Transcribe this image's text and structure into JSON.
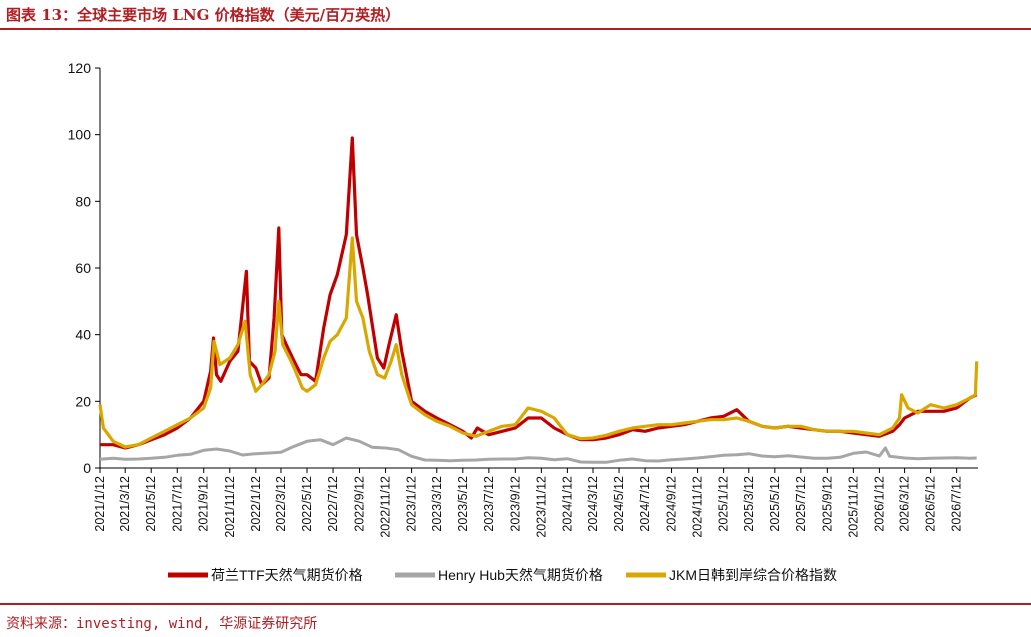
{
  "header": {
    "title": "图表 13：全球主要市场 LNG 价格指数（美元/百万英热）"
  },
  "footer": {
    "source": "资料来源：investing, wind, 华源证券研究所"
  },
  "colors": {
    "ttf": "#c00000",
    "henry_hub": "#a6a6a6",
    "jkm": "#d9a800",
    "accent": "#b01e23"
  },
  "chart_data": {
    "type": "line",
    "title": "图表 13：全球主要市场 LNG 价格指数（美元/百万英热）",
    "ylim": [
      0,
      120
    ],
    "yticks": [
      0,
      20,
      40,
      60,
      80,
      100,
      120
    ],
    "x_tick_labels": [
      "2021/1/12",
      "2021/3/12",
      "2021/5/12",
      "2021/7/12",
      "2021/9/12",
      "2021/11/12",
      "2022/1/12",
      "2022/3/12",
      "2022/5/12",
      "2022/7/12",
      "2022/9/12",
      "2022/11/12",
      "2023/1/12",
      "2023/3/12",
      "2023/5/12",
      "2023/7/12",
      "2023/9/12",
      "2023/11/12",
      "2024/1/12",
      "2024/3/12",
      "2024/5/12",
      "2024/7/12",
      "2024/9/12",
      "2024/11/12",
      "2025/1/12",
      "2025/3/12",
      "2025/5/12",
      "2025/7/12",
      "2025/9/12",
      "2025/11/12",
      "2026/1/12",
      "2026/3/12",
      "2026/5/12",
      "2026/7/12"
    ],
    "grid": false,
    "legend_position": "bottom",
    "series": [
      {
        "name": "荷兰TTF天然气期货价格",
        "points": [
          [
            "2021/1/12",
            7
          ],
          [
            "2021/2/12",
            7
          ],
          [
            "2021/3/12",
            6
          ],
          [
            "2021/4/12",
            7
          ],
          [
            "2021/5/12",
            8.5
          ],
          [
            "2021/6/12",
            10
          ],
          [
            "2021/7/12",
            12
          ],
          [
            "2021/8/12",
            15
          ],
          [
            "2021/9/12",
            20
          ],
          [
            "2021/9/28",
            29
          ],
          [
            "2021/10/5",
            39
          ],
          [
            "2021/10/12",
            28
          ],
          [
            "2021/10/22",
            26
          ],
          [
            "2021/11/12",
            32
          ],
          [
            "2021/12/1",
            35
          ],
          [
            "2021/12/21",
            59
          ],
          [
            "2021/12/28",
            32
          ],
          [
            "2022/1/12",
            30
          ],
          [
            "2022/1/26",
            25
          ],
          [
            "2022/2/12",
            27
          ],
          [
            "2022/2/24",
            45
          ],
          [
            "2022/3/7",
            72
          ],
          [
            "2022/3/14",
            40
          ],
          [
            "2022/3/28",
            36
          ],
          [
            "2022/4/12",
            32
          ],
          [
            "2022/4/28",
            28
          ],
          [
            "2022/5/12",
            28
          ],
          [
            "2022/6/1",
            26
          ],
          [
            "2022/6/20",
            42
          ],
          [
            "2022/7/5",
            52
          ],
          [
            "2022/7/22",
            58
          ],
          [
            "2022/8/12",
            70
          ],
          [
            "2022/8/26",
            99
          ],
          [
            "2022/9/5",
            70
          ],
          [
            "2022/9/20",
            60
          ],
          [
            "2022/10/1",
            52
          ],
          [
            "2022/10/24",
            33
          ],
          [
            "2022/11/8",
            30
          ],
          [
            "2022/11/20",
            37
          ],
          [
            "2022/12/7",
            46
          ],
          [
            "2022/12/20",
            35
          ],
          [
            "2023/1/12",
            20
          ],
          [
            "2023/2/12",
            17
          ],
          [
            "2023/3/12",
            15
          ],
          [
            "2023/4/12",
            13
          ],
          [
            "2023/5/12",
            11
          ],
          [
            "2023/6/1",
            9
          ],
          [
            "2023/6/15",
            12
          ],
          [
            "2023/7/12",
            10
          ],
          [
            "2023/8/12",
            11
          ],
          [
            "2023/9/12",
            12
          ],
          [
            "2023/10/12",
            15
          ],
          [
            "2023/11/12",
            15
          ],
          [
            "2023/12/12",
            12
          ],
          [
            "2024/1/12",
            10
          ],
          [
            "2024/2/12",
            8.5
          ],
          [
            "2024/3/12",
            8.5
          ],
          [
            "2024/4/12",
            9
          ],
          [
            "2024/5/12",
            10
          ],
          [
            "2024/6/12",
            11.5
          ],
          [
            "2024/7/12",
            11
          ],
          [
            "2024/8/12",
            12
          ],
          [
            "2024/9/12",
            12.5
          ],
          [
            "2024/10/12",
            13
          ],
          [
            "2024/11/12",
            14
          ],
          [
            "2024/12/12",
            15
          ],
          [
            "2025/1/12",
            15.5
          ],
          [
            "2025/2/12",
            17.5
          ],
          [
            "2025/3/12",
            14
          ],
          [
            "2025/4/12",
            12.5
          ],
          [
            "2025/5/12",
            12
          ],
          [
            "2025/6/12",
            12.5
          ],
          [
            "2025/7/12",
            12
          ],
          [
            "2025/8/12",
            11.5
          ],
          [
            "2025/9/12",
            11
          ],
          [
            "2025/10/12",
            11
          ],
          [
            "2025/11/12",
            10.5
          ],
          [
            "2025/12/12",
            10
          ],
          [
            "2026/1/12",
            9.5
          ],
          [
            "2026/2/12",
            11
          ],
          [
            "2026/2/28",
            13
          ],
          [
            "2026/3/12",
            15
          ],
          [
            "2026/4/12",
            17
          ],
          [
            "2026/5/12",
            17
          ],
          [
            "2026/6/12",
            17
          ],
          [
            "2026/7/12",
            18
          ],
          [
            "2026/8/12",
            21
          ],
          [
            "2026/8/28",
            22
          ]
        ]
      },
      {
        "name": "Henry Hub天然气期货价格",
        "points": [
          [
            "2021/1/12",
            2.6
          ],
          [
            "2021/2/12",
            2.9
          ],
          [
            "2021/3/12",
            2.6
          ],
          [
            "2021/4/12",
            2.7
          ],
          [
            "2021/5/12",
            2.9
          ],
          [
            "2021/6/12",
            3.2
          ],
          [
            "2021/7/12",
            3.8
          ],
          [
            "2021/8/12",
            4.1
          ],
          [
            "2021/9/12",
            5.3
          ],
          [
            "2021/10/12",
            5.7
          ],
          [
            "2021/11/12",
            5.1
          ],
          [
            "2021/12/12",
            3.9
          ],
          [
            "2022/1/12",
            4.3
          ],
          [
            "2022/2/12",
            4.5
          ],
          [
            "2022/3/12",
            4.7
          ],
          [
            "2022/4/12",
            6.5
          ],
          [
            "2022/5/12",
            8.0
          ],
          [
            "2022/6/12",
            8.5
          ],
          [
            "2022/7/12",
            7.0
          ],
          [
            "2022/8/12",
            9.0
          ],
          [
            "2022/9/12",
            8.0
          ],
          [
            "2022/10/12",
            6.2
          ],
          [
            "2022/11/12",
            6.0
          ],
          [
            "2022/12/12",
            5.5
          ],
          [
            "2023/1/12",
            3.5
          ],
          [
            "2023/2/12",
            2.4
          ],
          [
            "2023/3/12",
            2.3
          ],
          [
            "2023/4/12",
            2.2
          ],
          [
            "2023/5/12",
            2.3
          ],
          [
            "2023/6/12",
            2.4
          ],
          [
            "2023/7/12",
            2.6
          ],
          [
            "2023/8/12",
            2.7
          ],
          [
            "2023/9/12",
            2.7
          ],
          [
            "2023/10/12",
            3.1
          ],
          [
            "2023/11/12",
            2.9
          ],
          [
            "2023/12/12",
            2.5
          ],
          [
            "2024/1/12",
            2.8
          ],
          [
            "2024/2/12",
            1.8
          ],
          [
            "2024/3/12",
            1.7
          ],
          [
            "2024/4/12",
            1.7
          ],
          [
            "2024/5/12",
            2.3
          ],
          [
            "2024/6/12",
            2.7
          ],
          [
            "2024/7/12",
            2.2
          ],
          [
            "2024/8/12",
            2.1
          ],
          [
            "2024/9/12",
            2.5
          ],
          [
            "2024/10/12",
            2.7
          ],
          [
            "2024/11/12",
            3.0
          ],
          [
            "2024/12/12",
            3.4
          ],
          [
            "2025/1/12",
            3.8
          ],
          [
            "2025/2/12",
            4.0
          ],
          [
            "2025/3/12",
            4.3
          ],
          [
            "2025/4/12",
            3.6
          ],
          [
            "2025/5/12",
            3.4
          ],
          [
            "2025/6/12",
            3.7
          ],
          [
            "2025/7/12",
            3.3
          ],
          [
            "2025/8/12",
            2.9
          ],
          [
            "2025/9/12",
            2.9
          ],
          [
            "2025/10/12",
            3.2
          ],
          [
            "2025/11/12",
            4.4
          ],
          [
            "2025/12/12",
            4.8
          ],
          [
            "2026/1/12",
            3.6
          ],
          [
            "2026/1/26",
            6.0
          ],
          [
            "2026/2/5",
            3.5
          ],
          [
            "2026/3/12",
            3.0
          ],
          [
            "2026/4/12",
            2.8
          ],
          [
            "2026/5/12",
            2.9
          ],
          [
            "2026/6/12",
            3.0
          ],
          [
            "2026/7/12",
            3.1
          ],
          [
            "2026/8/12",
            2.9
          ],
          [
            "2026/8/28",
            3.0
          ]
        ]
      },
      {
        "name": "JKM日韩到岸综合价格指数",
        "points": [
          [
            "2021/1/12",
            19
          ],
          [
            "2021/1/20",
            12
          ],
          [
            "2021/2/12",
            8
          ],
          [
            "2021/3/12",
            6.3
          ],
          [
            "2021/4/12",
            7
          ],
          [
            "2021/5/12",
            9
          ],
          [
            "2021/6/12",
            11
          ],
          [
            "2021/7/12",
            13
          ],
          [
            "2021/8/12",
            15
          ],
          [
            "2021/9/12",
            18
          ],
          [
            "2021/9/28",
            24
          ],
          [
            "2021/10/6",
            38
          ],
          [
            "2021/10/20",
            31
          ],
          [
            "2021/11/12",
            33
          ],
          [
            "2021/12/1",
            37
          ],
          [
            "2021/12/18",
            44
          ],
          [
            "2021/12/30",
            28
          ],
          [
            "2022/1/12",
            23
          ],
          [
            "2022/1/26",
            25
          ],
          [
            "2022/2/12",
            28
          ],
          [
            "2022/2/26",
            35
          ],
          [
            "2022/3/7",
            50
          ],
          [
            "2022/3/16",
            37
          ],
          [
            "2022/4/1",
            33
          ],
          [
            "2022/4/12",
            30
          ],
          [
            "2022/5/1",
            24
          ],
          [
            "2022/5/12",
            23
          ],
          [
            "2022/6/1",
            25
          ],
          [
            "2022/6/20",
            33
          ],
          [
            "2022/7/5",
            38
          ],
          [
            "2022/7/22",
            40
          ],
          [
            "2022/8/12",
            45
          ],
          [
            "2022/8/26",
            69
          ],
          [
            "2022/9/5",
            50
          ],
          [
            "2022/9/20",
            45
          ],
          [
            "2022/10/5",
            35
          ],
          [
            "2022/10/24",
            28
          ],
          [
            "2022/11/10",
            27
          ],
          [
            "2022/11/25",
            32
          ],
          [
            "2022/12/7",
            37
          ],
          [
            "2022/12/20",
            28
          ],
          [
            "2023/1/12",
            19
          ],
          [
            "2023/2/12",
            16
          ],
          [
            "2023/3/12",
            14
          ],
          [
            "2023/4/12",
            12.5
          ],
          [
            "2023/5/12",
            10.5
          ],
          [
            "2023/6/12",
            9.5
          ],
          [
            "2023/7/12",
            11
          ],
          [
            "2023/8/12",
            12.5
          ],
          [
            "2023/9/12",
            13
          ],
          [
            "2023/10/12",
            18
          ],
          [
            "2023/11/12",
            17
          ],
          [
            "2023/12/12",
            15
          ],
          [
            "2024/1/12",
            10
          ],
          [
            "2024/2/12",
            8.8
          ],
          [
            "2024/3/12",
            9
          ],
          [
            "2024/4/12",
            9.8
          ],
          [
            "2024/5/12",
            11
          ],
          [
            "2024/6/12",
            12
          ],
          [
            "2024/7/12",
            12.5
          ],
          [
            "2024/8/12",
            13
          ],
          [
            "2024/9/12",
            13
          ],
          [
            "2024/10/12",
            13.5
          ],
          [
            "2024/11/12",
            14
          ],
          [
            "2024/12/12",
            14.5
          ],
          [
            "2025/1/12",
            14.5
          ],
          [
            "2025/2/12",
            15
          ],
          [
            "2025/3/12",
            14
          ],
          [
            "2025/4/12",
            12.5
          ],
          [
            "2025/5/12",
            12
          ],
          [
            "2025/6/12",
            12.5
          ],
          [
            "2025/7/12",
            12.5
          ],
          [
            "2025/8/12",
            11.5
          ],
          [
            "2025/9/12",
            11
          ],
          [
            "2025/10/12",
            11
          ],
          [
            "2025/11/12",
            11
          ],
          [
            "2025/12/12",
            10.5
          ],
          [
            "2026/1/12",
            10
          ],
          [
            "2026/2/12",
            12
          ],
          [
            "2026/2/28",
            15
          ],
          [
            "2026/3/5",
            22
          ],
          [
            "2026/3/20",
            18
          ],
          [
            "2026/4/12",
            16.5
          ],
          [
            "2026/5/12",
            19
          ],
          [
            "2026/6/12",
            18
          ],
          [
            "2026/7/12",
            19
          ],
          [
            "2026/8/12",
            21
          ],
          [
            "2026/8/25",
            22
          ],
          [
            "2026/8/28",
            32
          ]
        ]
      }
    ]
  }
}
